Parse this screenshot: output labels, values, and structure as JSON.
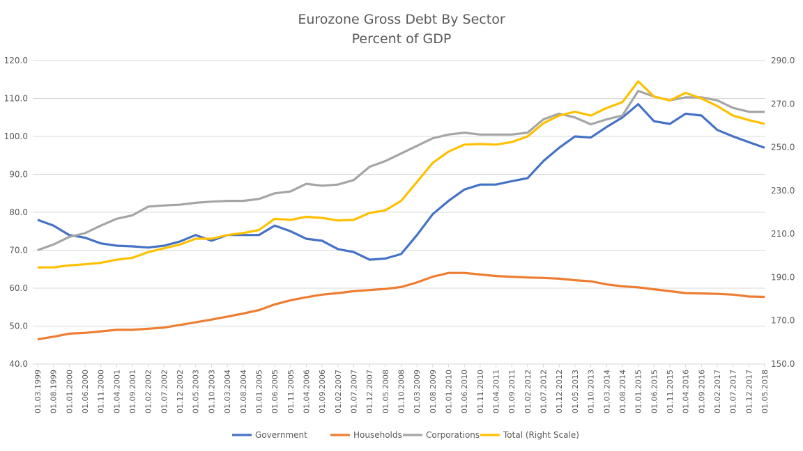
{
  "chart_data": {
    "type": "line",
    "title": "Eurozone Gross Debt By Sector",
    "subtitle": "Percent of GDP",
    "xlabel": "",
    "ylabel": "",
    "ylim": [
      40,
      120
    ],
    "y_ticks": [
      "40.0",
      "50.0",
      "60.0",
      "70.0",
      "80.0",
      "90.0",
      "100.0",
      "110.0",
      "120.0"
    ],
    "y2lim": [
      150,
      290
    ],
    "y2_ticks": [
      "150.0",
      "170.0",
      "190.0",
      "210.0",
      "230.0",
      "250.0",
      "270.0",
      "290.0"
    ],
    "grid": true,
    "legend_position": "bottom",
    "x": [
      "01.03.1999",
      "01.08.1999",
      "01.01.2000",
      "01.06.2000",
      "01.11.2000",
      "01.04.2001",
      "01.09.2001",
      "01.02.2002",
      "01.07.2002",
      "01.12.2002",
      "01.05.2003",
      "01.10.2003",
      "01.03.2004",
      "01.08.2004",
      "01.01.2005",
      "01.06.2005",
      "01.11.2005",
      "01.04.2006",
      "01.09.2006",
      "01.02.2007",
      "01.07.2007",
      "01.12.2007",
      "01.05.2008",
      "01.10.2008",
      "01.03.2009",
      "01.08.2009",
      "01.01.2010",
      "01.06.2010",
      "01.11.2010",
      "01.04.2011",
      "01.09.2011",
      "01.02.2012",
      "01.07.2012",
      "01.12.2012",
      "01.05.2013",
      "01.10.2013",
      "01.03.2014",
      "01.08.2014",
      "01.01.2015",
      "01.06.2015",
      "01.11.2015",
      "01.04.2016",
      "01.09.2016",
      "01.02.2017",
      "01.07.2017",
      "01.12.2017",
      "01.05.2018"
    ],
    "series": [
      {
        "name": "Government",
        "axis": "left",
        "color": "#4472C4",
        "values": [
          78,
          76.5,
          74,
          73.3,
          71.8,
          71.2,
          71,
          70.7,
          71.2,
          72.3,
          74,
          72.5,
          74,
          74,
          74,
          76.5,
          75,
          73,
          72.5,
          70.3,
          69.5,
          67.5,
          67.8,
          69,
          74,
          79.5,
          83,
          86,
          87.3,
          87.3,
          88.2,
          89,
          93.5,
          97,
          100,
          99.7,
          102.5,
          105,
          108.5,
          104,
          103.3,
          106,
          105.5,
          101.7,
          100,
          98.5,
          97
        ]
      },
      {
        "name": "Households",
        "axis": "left",
        "color": "#ED7D31",
        "values": [
          46.5,
          47.2,
          48,
          48.2,
          48.6,
          49,
          49,
          49.3,
          49.6,
          50.3,
          51,
          51.7,
          52.5,
          53.3,
          54.2,
          55.7,
          56.8,
          57.6,
          58.3,
          58.7,
          59.2,
          59.5,
          59.8,
          60.3,
          61.5,
          63,
          64,
          64,
          63.6,
          63.2,
          63,
          62.8,
          62.7,
          62.5,
          62.1,
          61.8,
          61,
          60.5,
          60.2,
          59.7,
          59.2,
          58.7,
          58.6,
          58.5,
          58.3,
          57.8,
          57.7
        ]
      },
      {
        "name": "Corporations",
        "axis": "left",
        "color": "#A5A5A5",
        "values": [
          70,
          71.5,
          73.5,
          74.5,
          76.5,
          78.3,
          79.2,
          81.5,
          81.8,
          82,
          82.5,
          82.8,
          83,
          83,
          83.5,
          85,
          85.5,
          87.5,
          87,
          87.3,
          88.5,
          92,
          93.5,
          95.5,
          97.5,
          99.5,
          100.5,
          101,
          100.5,
          100.5,
          100.5,
          101,
          104.5,
          106,
          105,
          103.2,
          104.5,
          105.5,
          112,
          110.5,
          109.5,
          110.3,
          110.3,
          109.5,
          107.5,
          106.5,
          106.5
        ]
      },
      {
        "name": "Total (Right Scale)",
        "axis": "right",
        "color": "#FFC000",
        "values": [
          194.6,
          194.6,
          195.5,
          196,
          196.7,
          198.1,
          199,
          201.6,
          203.4,
          205.1,
          207.8,
          207.8,
          209.5,
          210.4,
          211.8,
          217,
          216.5,
          217.9,
          217.4,
          216.2,
          216.5,
          219.7,
          220.9,
          225.3,
          234,
          242.8,
          248,
          251.2,
          251.5,
          251.2,
          252.4,
          255,
          261.1,
          264.6,
          266.4,
          264.6,
          268.1,
          270.8,
          280.4,
          273.4,
          271.6,
          275.1,
          272.5,
          269,
          264.6,
          262.5,
          260.8
        ]
      }
    ]
  }
}
